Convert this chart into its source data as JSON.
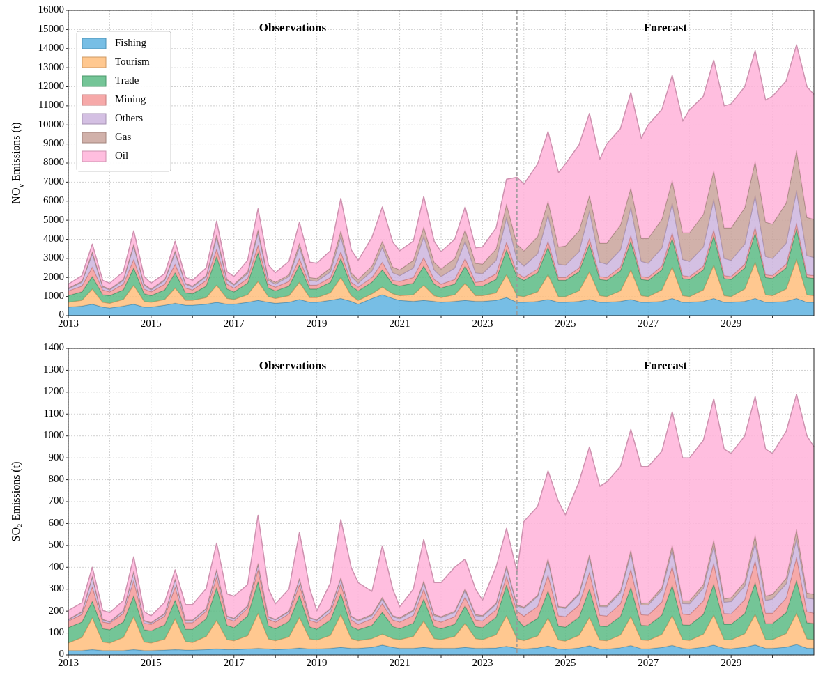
{
  "chart_data": [
    {
      "type": "area",
      "stacked": true,
      "ylabel": "NO$_{x}$ Emissions (t)",
      "legend": "top left",
      "grid": true,
      "x": [
        "2013-01",
        "2013-05",
        "2013-08",
        "2013-11",
        "2014-01",
        "2014-05",
        "2014-08",
        "2014-11",
        "2015-01",
        "2015-05",
        "2015-08",
        "2015-11",
        "2016-01",
        "2016-05",
        "2016-08",
        "2016-11",
        "2017-01",
        "2017-05",
        "2017-08",
        "2017-11",
        "2018-01",
        "2018-05",
        "2018-08",
        "2018-11",
        "2019-01",
        "2019-05",
        "2019-08",
        "2019-11",
        "2020-01",
        "2020-05",
        "2020-08",
        "2020-11",
        "2021-01",
        "2021-05",
        "2021-08",
        "2021-11",
        "2022-01",
        "2022-05",
        "2022-08",
        "2022-11",
        "2023-01",
        "2023-05",
        "2023-08",
        "2023-11",
        "2024-01",
        "2024-05",
        "2024-08",
        "2024-11",
        "2025-01",
        "2025-05",
        "2025-08",
        "2025-11",
        "2026-01",
        "2026-05",
        "2026-08",
        "2026-11",
        "2027-01",
        "2027-05",
        "2027-08",
        "2027-11",
        "2028-01",
        "2028-05",
        "2028-08",
        "2028-11",
        "2029-01",
        "2029-05",
        "2029-08",
        "2029-11",
        "2030-01",
        "2030-05",
        "2030-08",
        "2030-11",
        "2031-01"
      ],
      "xlim": [
        "2013-01",
        "2031-01"
      ],
      "xticks": [
        "2013",
        {
          "value": "2014",
          "label": null
        },
        "2015",
        {
          "value": "2016",
          "label": null
        },
        "2017",
        {
          "value": "2018",
          "label": null
        },
        "2019",
        {
          "value": "2020",
          "label": null
        },
        "2021",
        {
          "value": "2022",
          "label": null
        },
        "2023",
        {
          "value": "2024",
          "label": null
        },
        "2025",
        {
          "value": "2026",
          "label": null
        },
        "2027",
        {
          "value": "2028",
          "label": null
        },
        "2029",
        {
          "value": "2030",
          "label": null
        }
      ],
      "ylim": [
        0,
        16000
      ],
      "yticks": [
        0,
        1000,
        2000,
        3000,
        4000,
        5000,
        6000,
        7000,
        8000,
        9000,
        10000,
        11000,
        12000,
        13000,
        14000,
        15000,
        16000
      ],
      "ref_lines": [
        {
          "axis": "x",
          "value": "2023-11",
          "color": "#999999",
          "line_style": "dashed"
        }
      ],
      "annotations": [
        "Observations",
        "Forecast"
      ],
      "series": [
        {
          "name": "Fishing",
          "color": "#5fb3e0",
          "values": [
            450,
            500,
            600,
            450,
            400,
            500,
            600,
            450,
            450,
            550,
            650,
            550,
            550,
            600,
            700,
            600,
            600,
            700,
            800,
            700,
            650,
            700,
            850,
            700,
            700,
            800,
            900,
            750,
            600,
            900,
            1100,
            900,
            800,
            750,
            800,
            750,
            700,
            750,
            800,
            750,
            750,
            800,
            950,
            700,
            700,
            750,
            850,
            700,
            700,
            750,
            850,
            700,
            700,
            750,
            850,
            700,
            700,
            750,
            900,
            700,
            700,
            750,
            900,
            700,
            700,
            750,
            900,
            700,
            700,
            750,
            900,
            700,
            700
          ]
        },
        {
          "name": "Tourism",
          "color": "#ffbe7d",
          "values": [
            250,
            300,
            800,
            250,
            250,
            350,
            1000,
            300,
            250,
            300,
            800,
            250,
            250,
            350,
            900,
            300,
            250,
            400,
            1000,
            300,
            250,
            350,
            900,
            250,
            250,
            400,
            1100,
            300,
            200,
            250,
            400,
            250,
            250,
            350,
            800,
            300,
            250,
            350,
            900,
            300,
            300,
            400,
            1200,
            350,
            300,
            500,
            1300,
            300,
            300,
            550,
            1450,
            350,
            300,
            550,
            1550,
            350,
            300,
            600,
            1650,
            350,
            300,
            600,
            1750,
            350,
            300,
            650,
            1900,
            400,
            350,
            650,
            2050,
            400,
            350
          ]
        },
        {
          "name": "Trade",
          "color": "#5cbb85",
          "values": [
            350,
            450,
            650,
            400,
            400,
            500,
            900,
            400,
            350,
            500,
            800,
            400,
            350,
            600,
            1500,
            500,
            400,
            600,
            1500,
            450,
            400,
            500,
            900,
            450,
            450,
            550,
            1000,
            500,
            500,
            600,
            900,
            500,
            500,
            600,
            1000,
            600,
            500,
            550,
            900,
            500,
            500,
            700,
            1300,
            1000,
            850,
            1000,
            1450,
            850,
            850,
            1000,
            1450,
            850,
            850,
            1050,
            1500,
            850,
            850,
            1050,
            1500,
            900,
            900,
            1050,
            1550,
            900,
            900,
            1100,
            1550,
            900,
            900,
            1100,
            1600,
            900,
            900
          ]
        },
        {
          "name": "Mining",
          "color": "#f59a9a",
          "values": [
            250,
            300,
            500,
            250,
            200,
            300,
            450,
            250,
            200,
            300,
            450,
            250,
            200,
            300,
            400,
            250,
            200,
            250,
            400,
            200,
            200,
            250,
            350,
            200,
            200,
            250,
            350,
            200,
            200,
            250,
            400,
            200,
            250,
            300,
            450,
            250,
            200,
            250,
            400,
            200,
            250,
            300,
            400,
            200,
            150,
            200,
            300,
            150,
            150,
            200,
            300,
            150,
            150,
            200,
            300,
            150,
            150,
            200,
            300,
            150,
            150,
            200,
            300,
            150,
            150,
            200,
            300,
            150,
            150,
            200,
            300,
            150,
            150
          ]
        },
        {
          "name": "Others",
          "color": "#cdb5de",
          "values": [
            100,
            200,
            700,
            150,
            100,
            200,
            700,
            200,
            100,
            200,
            600,
            200,
            150,
            200,
            600,
            200,
            150,
            250,
            650,
            200,
            150,
            250,
            600,
            250,
            200,
            300,
            800,
            300,
            200,
            350,
            800,
            400,
            300,
            500,
            1100,
            500,
            400,
            600,
            900,
            500,
            400,
            700,
            1300,
            700,
            600,
            800,
            1400,
            700,
            650,
            850,
            1450,
            750,
            700,
            900,
            1500,
            800,
            750,
            950,
            1550,
            850,
            800,
            1000,
            1600,
            900,
            850,
            1050,
            1650,
            950,
            900,
            1100,
            1700,
            1000,
            950
          ]
        },
        {
          "name": "Gas",
          "color": "#c9a39b",
          "values": [
            50,
            50,
            100,
            50,
            50,
            50,
            100,
            50,
            50,
            50,
            100,
            50,
            50,
            50,
            150,
            50,
            50,
            100,
            150,
            100,
            100,
            100,
            200,
            150,
            150,
            200,
            300,
            200,
            200,
            250,
            300,
            300,
            300,
            400,
            500,
            400,
            400,
            500,
            600,
            500,
            500,
            600,
            700,
            800,
            800,
            900,
            700,
            900,
            1000,
            1100,
            800,
            1000,
            1100,
            1300,
            1000,
            1200,
            1300,
            1500,
            1200,
            1400,
            1500,
            1700,
            1500,
            1600,
            1700,
            1900,
            1800,
            1800,
            1800,
            2100,
            2100,
            2000,
            2000
          ]
        },
        {
          "name": "Oil",
          "color": "#ffb3d9",
          "values": [
            200,
            300,
            400,
            300,
            300,
            400,
            700,
            400,
            300,
            300,
            500,
            300,
            300,
            400,
            700,
            400,
            400,
            600,
            1100,
            700,
            500,
            700,
            1100,
            800,
            800,
            900,
            1700,
            1200,
            1000,
            1500,
            1800,
            1300,
            1000,
            1000,
            1600,
            1100,
            900,
            1000,
            1200,
            800,
            900,
            1100,
            1300,
            3500,
            3500,
            3800,
            3650,
            3900,
            4300,
            4500,
            4300,
            4400,
            5200,
            5050,
            5000,
            5250,
            5950,
            5750,
            5500,
            5850,
            6450,
            6200,
            5800,
            6400,
            6500,
            6350,
            5800,
            6400,
            6700,
            6400,
            5550,
            6850,
            6550
          ]
        }
      ]
    },
    {
      "type": "area",
      "stacked": true,
      "ylabel": "SO₂ Emissions (t)",
      "grid": true,
      "x": [
        "2013-01",
        "2013-05",
        "2013-08",
        "2013-11",
        "2014-01",
        "2014-05",
        "2014-08",
        "2014-11",
        "2015-01",
        "2015-05",
        "2015-08",
        "2015-11",
        "2016-01",
        "2016-05",
        "2016-08",
        "2016-11",
        "2017-01",
        "2017-05",
        "2017-08",
        "2017-11",
        "2018-01",
        "2018-05",
        "2018-08",
        "2018-11",
        "2019-01",
        "2019-05",
        "2019-08",
        "2019-11",
        "2020-01",
        "2020-05",
        "2020-08",
        "2020-11",
        "2021-01",
        "2021-05",
        "2021-08",
        "2021-11",
        "2022-01",
        "2022-05",
        "2022-08",
        "2022-11",
        "2023-01",
        "2023-05",
        "2023-08",
        "2023-11",
        "2024-01",
        "2024-05",
        "2024-08",
        "2024-11",
        "2025-01",
        "2025-05",
        "2025-08",
        "2025-11",
        "2026-01",
        "2026-05",
        "2026-08",
        "2026-11",
        "2027-01",
        "2027-05",
        "2027-08",
        "2027-11",
        "2028-01",
        "2028-05",
        "2028-08",
        "2028-11",
        "2029-01",
        "2029-05",
        "2029-08",
        "2029-11",
        "2030-01",
        "2030-05",
        "2030-08",
        "2030-11",
        "2031-01"
      ],
      "xlim": [
        "2013-01",
        "2031-01"
      ],
      "xticks": [
        "2013",
        {
          "value": "2014",
          "label": null
        },
        "2015",
        {
          "value": "2016",
          "label": null
        },
        "2017",
        {
          "value": "2018",
          "label": null
        },
        "2019",
        {
          "value": "2020",
          "label": null
        },
        "2021",
        {
          "value": "2022",
          "label": null
        },
        "2023",
        {
          "value": "2024",
          "label": null
        },
        "2025",
        {
          "value": "2026",
          "label": null
        },
        "2027",
        {
          "value": "2028",
          "label": null
        },
        "2029",
        {
          "value": "2030",
          "label": null
        }
      ],
      "ylim": [
        0,
        1400
      ],
      "yticks": [
        0,
        100,
        200,
        300,
        400,
        500,
        600,
        700,
        800,
        900,
        1000,
        1100,
        1200,
        1300,
        1400
      ],
      "ref_lines": [
        {
          "axis": "x",
          "value": "2023-11",
          "color": "#999999",
          "line_style": "dashed"
        }
      ],
      "annotations": [
        "Observations",
        "Forecast"
      ],
      "series": [
        {
          "color": "#5fb3e0",
          "values": [
            20,
            20,
            25,
            20,
            20,
            20,
            25,
            20,
            20,
            22,
            25,
            22,
            22,
            25,
            28,
            25,
            25,
            28,
            30,
            28,
            25,
            28,
            32,
            28,
            28,
            30,
            35,
            30,
            30,
            35,
            45,
            35,
            30,
            30,
            35,
            30,
            30,
            30,
            35,
            30,
            30,
            32,
            40,
            30,
            28,
            32,
            41,
            28,
            26,
            32,
            42,
            28,
            27,
            33,
            43,
            29,
            28,
            34,
            44,
            30,
            28,
            35,
            45,
            30,
            29,
            35,
            46,
            30,
            30,
            36,
            48,
            31,
            30
          ]
        },
        {
          "color": "#ffbe7d",
          "values": [
            35,
            60,
            145,
            40,
            35,
            60,
            150,
            40,
            35,
            50,
            140,
            40,
            35,
            60,
            130,
            45,
            40,
            60,
            160,
            45,
            40,
            55,
            140,
            45,
            40,
            60,
            150,
            45,
            35,
            40,
            50,
            40,
            40,
            55,
            120,
            45,
            40,
            55,
            110,
            45,
            40,
            60,
            140,
            45,
            38,
            55,
            128,
            40,
            38,
            58,
            130,
            40,
            38,
            58,
            133,
            40,
            39,
            60,
            136,
            40,
            39,
            60,
            138,
            40,
            40,
            62,
            140,
            40,
            40,
            62,
            143,
            42,
            40
          ]
        },
        {
          "color": "#5cbb85",
          "values": [
            70,
            70,
            75,
            60,
            60,
            70,
            95,
            55,
            55,
            65,
            85,
            55,
            60,
            80,
            150,
            65,
            60,
            90,
            145,
            60,
            55,
            70,
            100,
            55,
            50,
            70,
            95,
            55,
            50,
            60,
            100,
            55,
            50,
            60,
            100,
            55,
            50,
            55,
            80,
            55,
            55,
            80,
            140,
            90,
            63,
            80,
            124,
            63,
            63,
            82,
            128,
            64,
            65,
            85,
            133,
            66,
            67,
            88,
            137,
            68,
            69,
            90,
            141,
            70,
            71,
            92,
            145,
            72,
            73,
            95,
            149,
            74,
            73
          ]
        },
        {
          "color": "#f59a9a",
          "values": [
            30,
            35,
            67,
            30,
            30,
            40,
            70,
            30,
            30,
            40,
            60,
            30,
            30,
            35,
            50,
            30,
            30,
            35,
            55,
            30,
            30,
            35,
            50,
            30,
            30,
            35,
            45,
            30,
            25,
            30,
            40,
            30,
            30,
            35,
            45,
            30,
            30,
            35,
            40,
            30,
            30,
            35,
            40,
            35,
            48,
            55,
            73,
            48,
            48,
            56,
            78,
            49,
            48,
            58,
            83,
            49,
            48,
            60,
            88,
            49,
            48,
            62,
            95,
            49,
            48,
            64,
            100,
            49,
            48,
            66,
            106,
            50,
            48
          ]
        },
        {
          "color": "#cdb5de",
          "values": [
            5,
            10,
            45,
            10,
            5,
            10,
            40,
            10,
            5,
            10,
            35,
            10,
            10,
            10,
            30,
            10,
            10,
            10,
            25,
            10,
            10,
            10,
            25,
            10,
            10,
            15,
            25,
            15,
            15,
            15,
            20,
            15,
            15,
            20,
            30,
            20,
            20,
            20,
            30,
            20,
            20,
            25,
            40,
            25,
            37,
            45,
            65,
            38,
            38,
            47,
            68,
            40,
            42,
            50,
            72,
            44,
            46,
            54,
            75,
            48,
            50,
            58,
            78,
            52,
            56,
            62,
            82,
            58,
            64,
            66,
            86,
            62,
            64
          ]
        },
        {
          "color": "#c9a39b",
          "values": [
            3,
            3,
            3,
            3,
            3,
            3,
            3,
            3,
            3,
            3,
            3,
            3,
            3,
            3,
            3,
            3,
            3,
            3,
            3,
            3,
            3,
            3,
            3,
            3,
            3,
            3,
            3,
            3,
            5,
            5,
            8,
            5,
            5,
            5,
            8,
            5,
            5,
            5,
            8,
            5,
            5,
            5,
            8,
            5,
            5,
            6,
            10,
            5,
            5,
            7,
            12,
            6,
            7,
            9,
            16,
            8,
            10,
            12,
            22,
            12,
            14,
            16,
            28,
            15,
            18,
            20,
            35,
            20,
            22,
            25,
            41,
            24,
            22
          ]
        },
        {
          "color": "#ffb3d9",
          "values": [
            40,
            40,
            40,
            40,
            40,
            45,
            65,
            40,
            30,
            50,
            40,
            70,
            70,
            90,
            120,
            100,
            100,
            95,
            220,
            125,
            70,
            100,
            210,
            130,
            40,
            115,
            265,
            220,
            170,
            105,
            235,
            120,
            50,
            95,
            190,
            145,
            155,
            200,
            135,
            115,
            70,
            165,
            170,
            150,
            390,
            405,
            400,
            478,
            422,
            508,
            492,
            543,
            563,
            567,
            550,
            624,
            622,
            622,
            608,
            653,
            652,
            659,
            645,
            684,
            658,
            665,
            632,
            671,
            643,
            670,
            617,
            717,
            673
          ]
        }
      ]
    }
  ]
}
